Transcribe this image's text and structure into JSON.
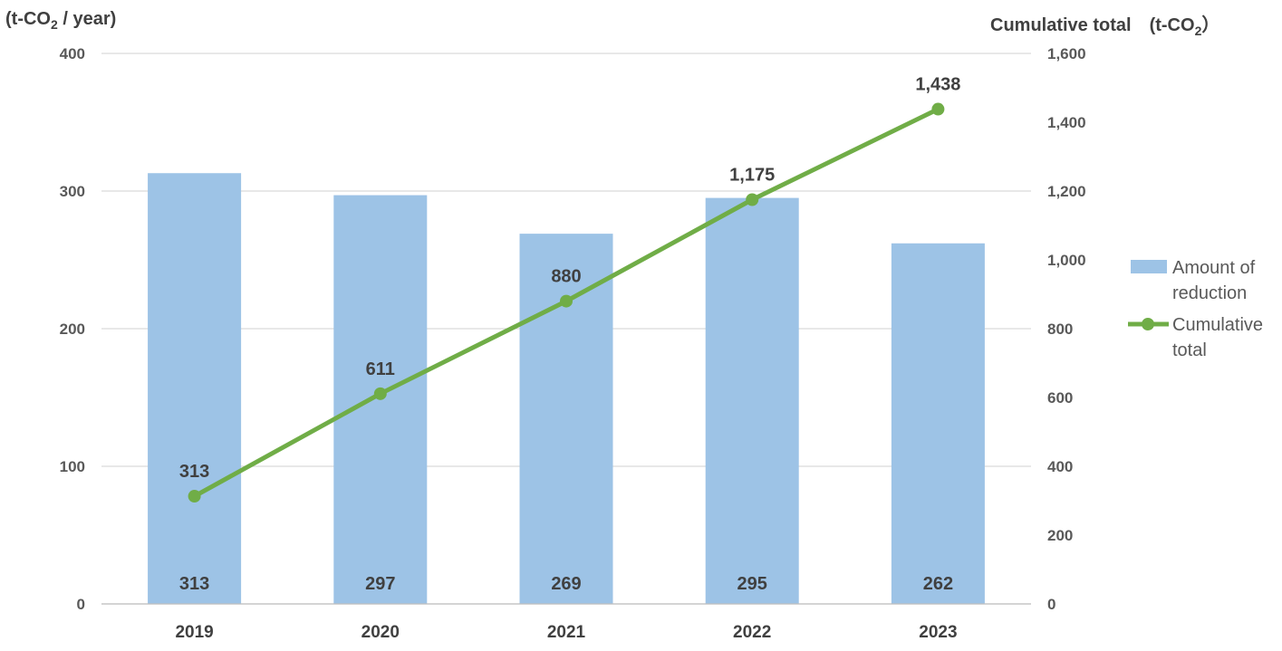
{
  "chart_data": {
    "type": "bar+line",
    "categories": [
      "2019",
      "2020",
      "2021",
      "2022",
      "2023"
    ],
    "series": [
      {
        "name_lines": [
          "Amount of",
          "reduction"
        ],
        "type": "bar",
        "axis": "left",
        "values": [
          313,
          297,
          269,
          295,
          262
        ],
        "data_labels": [
          "313",
          "297",
          "269",
          "295",
          "262"
        ],
        "color": "#9dc3e6"
      },
      {
        "name_lines": [
          "Cumulative",
          "total"
        ],
        "type": "line",
        "axis": "right",
        "values": [
          313,
          611,
          880,
          1175,
          1438
        ],
        "data_labels": [
          "313",
          "611",
          "880",
          "1,175",
          "1,438"
        ],
        "color": "#70ad47"
      }
    ],
    "y_left": {
      "label_pre": "(t-CO",
      "label_sub": "2",
      "label_post": " / year)",
      "range": [
        0,
        400
      ],
      "ticks": [
        "0",
        "100",
        "200",
        "300",
        "400"
      ]
    },
    "y_right": {
      "label_pre": "Cumulative total　(t-CO",
      "label_sub": "2",
      "label_post": "）",
      "range": [
        0,
        1600
      ],
      "ticks": [
        "0",
        "200",
        "400",
        "600",
        "800",
        "1,000",
        "1,200",
        "1,400",
        "1,600"
      ]
    },
    "grid": true,
    "legend_position": "right"
  }
}
